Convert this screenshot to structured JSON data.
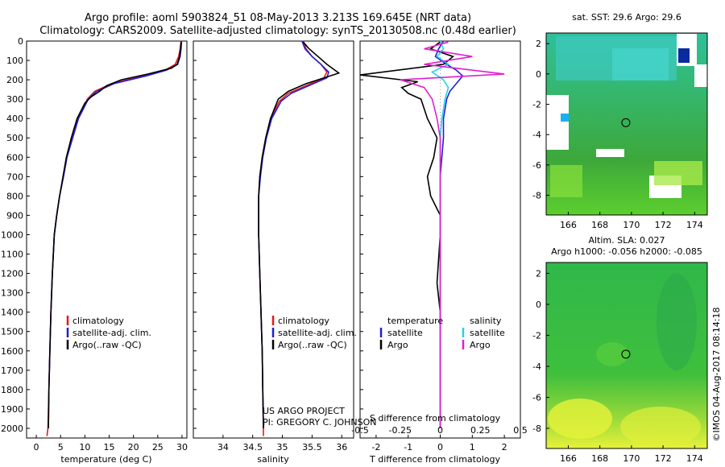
{
  "titles": {
    "line1": "Argo profile: aoml 5903824_51 08-May-2013 3.213S 169.645E (NRT data)",
    "line2": "Climatology: CARS2009. Satellite-adjusted climatology: synTS_20130508.nc (0.48d earlier)"
  },
  "colors": {
    "climatology": "#e41a1c",
    "satellite": "#1f1fd6",
    "argo": "#000000",
    "sat_sal": "#22d3e6",
    "argo_sal": "#e020d0"
  },
  "depth_ticks": [
    "0",
    "100",
    "200",
    "300",
    "400",
    "500",
    "600",
    "700",
    "800",
    "900",
    "1000",
    "1100",
    "1200",
    "1300",
    "1400",
    "1500",
    "1600",
    "1700",
    "1800",
    "1900",
    "2000"
  ],
  "chart_data": [
    {
      "type": "line",
      "panel": "temperature",
      "xlabel": "temperature (deg C)",
      "xlim": [
        -2,
        31
      ],
      "ylim": [
        0,
        2050
      ],
      "xticks": [
        "0",
        "5",
        "10",
        "15",
        "20",
        "25",
        "30"
      ],
      "legend": [
        "climatology",
        "satellite-adj. clim.",
        "Argo(..raw -QC)"
      ],
      "series": [
        {
          "name": "climatology",
          "x": [
            29.8,
            29.6,
            29.3,
            28.6,
            26.5,
            22.0,
            15.5,
            12.0,
            10.5,
            8.6,
            7.4,
            6.3,
            5.6,
            4.8,
            4.2,
            3.7,
            3.3,
            3.0,
            2.8,
            2.6,
            2.5,
            2.4,
            2.2
          ],
          "depth": [
            0,
            40,
            80,
            120,
            150,
            180,
            220,
            260,
            300,
            400,
            500,
            600,
            700,
            800,
            900,
            1000,
            1200,
            1400,
            1600,
            1800,
            1900,
            2000,
            2040
          ]
        },
        {
          "name": "satellite-adj. clim.",
          "x": [
            29.9,
            29.8,
            29.6,
            29.1,
            26.8,
            22.6,
            16.0,
            12.4,
            10.7,
            8.7,
            7.5,
            6.3,
            5.6,
            4.8,
            4.2,
            3.7,
            3.3,
            3.0,
            2.8,
            2.6,
            2.5
          ],
          "depth": [
            0,
            40,
            80,
            120,
            150,
            180,
            220,
            260,
            300,
            400,
            500,
            600,
            700,
            800,
            900,
            1000,
            1200,
            1400,
            1600,
            1800,
            2000
          ]
        },
        {
          "name": "Argo(..raw -QC)",
          "x": [
            29.8,
            29.7,
            29.5,
            29.0,
            27.8,
            23.0,
            17.5,
            14.5,
            13.0,
            11.2,
            10.0,
            8.4,
            7.2,
            6.2,
            5.5,
            4.8,
            4.2,
            3.7,
            3.3,
            3.0,
            2.8,
            2.6,
            2.5
          ],
          "depth": [
            5,
            40,
            80,
            120,
            140,
            170,
            200,
            230,
            260,
            290,
            320,
            400,
            500,
            600,
            700,
            800,
            900,
            1000,
            1200,
            1400,
            1600,
            1800,
            2000
          ]
        }
      ]
    },
    {
      "type": "line",
      "panel": "salinity",
      "xlabel": "salinity",
      "xlim": [
        33.5,
        36.2
      ],
      "ylim": [
        0,
        2050
      ],
      "xticks": [
        "34",
        "34.5",
        "35",
        "35.5",
        "36"
      ],
      "legend": [
        "climatology",
        "satellite-adj. clim.",
        "Argo(..raw -QC)"
      ],
      "series": [
        {
          "name": "climatology",
          "x": [
            35.35,
            35.4,
            35.5,
            35.65,
            35.75,
            35.7,
            35.4,
            35.1,
            34.95,
            34.8,
            34.72,
            34.66,
            34.62,
            34.6,
            34.6,
            34.62,
            34.64,
            34.66,
            34.67,
            34.68,
            34.68
          ],
          "depth": [
            0,
            40,
            80,
            120,
            160,
            190,
            230,
            270,
            310,
            400,
            500,
            600,
            700,
            800,
            1000,
            1200,
            1400,
            1600,
            1800,
            2000,
            2040
          ]
        },
        {
          "name": "satellite-adj. clim.",
          "x": [
            35.33,
            35.38,
            35.5,
            35.65,
            35.78,
            35.75,
            35.45,
            35.15,
            34.98,
            34.82,
            34.73,
            34.67,
            34.63,
            34.6,
            34.6,
            34.62,
            34.64,
            34.66,
            34.67,
            34.68
          ],
          "depth": [
            0,
            40,
            80,
            120,
            160,
            190,
            230,
            270,
            310,
            400,
            500,
            600,
            700,
            800,
            1000,
            1200,
            1400,
            1600,
            1800,
            2000
          ]
        },
        {
          "name": "Argo(..raw -QC)",
          "x": [
            35.35,
            35.45,
            35.6,
            35.75,
            35.95,
            35.7,
            35.4,
            35.1,
            34.93,
            34.8,
            34.72,
            34.66,
            34.62,
            34.6,
            34.6,
            34.62,
            34.64,
            34.66,
            34.67,
            34.68
          ],
          "depth": [
            5,
            40,
            80,
            120,
            165,
            190,
            220,
            260,
            300,
            400,
            500,
            600,
            700,
            800,
            1000,
            1200,
            1400,
            1600,
            1800,
            2000
          ]
        }
      ]
    },
    {
      "type": "line",
      "panel": "differences",
      "xlabel_top": "S difference from climatology",
      "xlabel": "T difference from climatology",
      "xlim": [
        -2.5,
        2.5
      ],
      "ylim": [
        0,
        2050
      ],
      "xticks": [
        "-2",
        "-1",
        "0",
        "1",
        "2"
      ],
      "top_ticks": [
        "-0.5",
        "-0.25",
        "0",
        "0.25",
        "0.5"
      ],
      "legend": {
        "temperature_header": "temperature",
        "salinity_header": "salinity",
        "temp_satellite": "satellite",
        "temp_argo": "Argo",
        "sal_satellite": "satellite",
        "sal_argo": "Argo"
      },
      "series": [
        {
          "name": "temperature satellite",
          "x": [
            0.1,
            -0.05,
            -0.15,
            0.2,
            0.5,
            0.7,
            0.5,
            0.3,
            0.2,
            0.1,
            0.1,
            0.05,
            0.0,
            0.0,
            0.0,
            0.0,
            0.0,
            0.0,
            0.0,
            0.0
          ],
          "depth": [
            0,
            40,
            80,
            120,
            150,
            180,
            220,
            260,
            300,
            400,
            500,
            600,
            700,
            800,
            1000,
            1200,
            1400,
            1600,
            1800,
            2000
          ]
        },
        {
          "name": "temperature Argo",
          "x": [
            0.0,
            -0.3,
            0.4,
            0.1,
            -2.5,
            -0.7,
            -1.2,
            -1.0,
            -0.6,
            -0.4,
            -0.1,
            -0.2,
            -0.4,
            -0.3,
            0.0,
            0.0,
            -0.1,
            0.0,
            0.0,
            0.0,
            0.0
          ],
          "depth": [
            5,
            40,
            80,
            120,
            175,
            210,
            240,
            270,
            300,
            400,
            500,
            600,
            700,
            800,
            900,
            1000,
            1250,
            1400,
            1600,
            1800,
            2000
          ]
        },
        {
          "name": "salinity satellite",
          "x": [
            0.0,
            0.02,
            -0.02,
            0.05,
            -0.05,
            0.02,
            0.05,
            0.03,
            0.01,
            0.0,
            0.0,
            0.0,
            0.0,
            0.0,
            0.0,
            0.0
          ],
          "depth": [
            0,
            40,
            80,
            120,
            160,
            200,
            240,
            300,
            400,
            500,
            600,
            800,
            1000,
            1400,
            1800,
            2000
          ]
        },
        {
          "name": "salinity Argo",
          "x": [
            0.05,
            -0.1,
            0.2,
            -0.1,
            0.4,
            -0.25,
            -0.1,
            -0.05,
            -0.02,
            0.0,
            0.0,
            0.0,
            0.0,
            0.0
          ],
          "depth": [
            5,
            40,
            80,
            120,
            170,
            200,
            240,
            300,
            400,
            500,
            700,
            1000,
            1500,
            2000
          ]
        }
      ]
    },
    {
      "type": "heatmap",
      "panel": "sst-map",
      "title": "sat. SST: 29.6  Argo: 29.6",
      "xticks": [
        "166",
        "168",
        "170",
        "172",
        "174"
      ],
      "yticks": [
        "2",
        "0",
        "-2",
        "-4",
        "-6",
        "-8"
      ],
      "xlim": [
        164.6,
        174.8
      ],
      "ylim": [
        -9.3,
        2.7
      ],
      "argo_position": [
        169.645,
        -3.213
      ]
    },
    {
      "type": "heatmap",
      "panel": "sla-map",
      "title": "Altim. SLA: 0.027",
      "subtitle": "Argo h1000: -0.056 h2000: -0.085",
      "xticks": [
        "166",
        "168",
        "170",
        "172",
        "174"
      ],
      "yticks": [
        "2",
        "0",
        "-2",
        "-4",
        "-6",
        "-8"
      ],
      "xlim": [
        164.6,
        174.8
      ],
      "ylim": [
        -9.3,
        2.7
      ],
      "argo_position": [
        169.645,
        -3.213
      ]
    }
  ],
  "credits": {
    "project": "US ARGO PROJECT",
    "pi": "PI: GREGORY C. JOHNSON",
    "side_label": "©IMOS 04-Aug-2017 08:14:18"
  }
}
